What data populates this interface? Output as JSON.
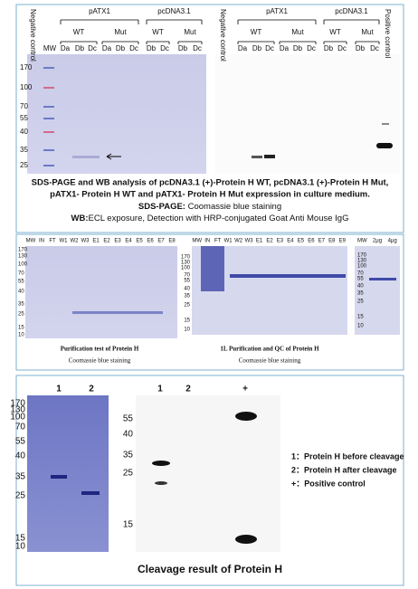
{
  "panel1": {
    "left": {
      "negative_control": "Negative control",
      "mw": "MW",
      "groups": [
        "pATX1",
        "pcDNA3.1"
      ],
      "subgroups": [
        "WT",
        "Mut",
        "WT",
        "Mut"
      ],
      "lanes": [
        "Da",
        "Db",
        "Dc",
        "Da",
        "Db",
        "Dc",
        "Db",
        "Dc",
        "Db",
        "Dc"
      ],
      "markers": [
        "170",
        "100",
        "70",
        "55",
        "40",
        "35",
        "25"
      ]
    },
    "right": {
      "negative_control": "Negative control",
      "groups": [
        "pATX1",
        "pcDNA3.1"
      ],
      "subgroups": [
        "WT",
        "Mut",
        "WT",
        "Mut"
      ],
      "lanes": [
        "Da",
        "Db",
        "Dc",
        "Da",
        "Db",
        "Dc",
        "Db",
        "Dc",
        "Db",
        "Dc"
      ],
      "positive_control": "Positive control"
    },
    "caption": [
      "SDS-PAGE and WB analysis of pcDNA3.1 (+)-Protein H WT, pcDNA3.1 (+)-Protein H Mut,",
      "pATX1- Protein H WT and pATX1- Protein H Mut expression in culture medium."
    ],
    "sds_label": "SDS-PAGE:",
    "sds_text": " Coomassie blue staining",
    "wb_label": "WB:",
    "wb_text": "ECL exposure, Detection with HRP-conjugated Goat Anti Mouse IgG"
  },
  "panel2": {
    "left": {
      "lanes": [
        "MW",
        "IN",
        "FT",
        "W1",
        "W2",
        "W3",
        "E1",
        "E2",
        "E3",
        "E4",
        "E5",
        "E6",
        "E7",
        "E8"
      ],
      "markers": [
        "170",
        "130",
        "100",
        "70",
        "55",
        "40",
        "35",
        "25",
        "15",
        "10"
      ],
      "caption": "Purification test of Protein H",
      "staining": "Coomassie blue staining"
    },
    "middle": {
      "lanes": [
        "MW",
        "IN",
        "FT",
        "W1",
        "W2",
        "W3",
        "E1",
        "E2",
        "E3",
        "E4",
        "E5",
        "E6",
        "E7",
        "E8",
        "E9"
      ],
      "markers": [
        "170",
        "130",
        "100",
        "70",
        "55",
        "40",
        "35",
        "25",
        "15",
        "10"
      ],
      "caption": "1L Purification and QC of Protein H",
      "staining": "Coomassie blue staining"
    },
    "right": {
      "lanes": [
        "MW",
        "2μg",
        "4μg"
      ],
      "markers": [
        "170",
        "130",
        "100",
        "70",
        "55",
        "40",
        "35",
        "25",
        "15",
        "10"
      ]
    }
  },
  "panel3": {
    "left": {
      "lanes": [
        "1",
        "2"
      ],
      "markers": [
        "170",
        "130",
        "100",
        "70",
        "55",
        "40",
        "35",
        "25",
        "15",
        "10"
      ]
    },
    "right": {
      "lanes": [
        "1",
        "2",
        "+"
      ],
      "markers": [
        "55",
        "40",
        "35",
        "25",
        "15"
      ]
    },
    "legend": [
      "1：Protein H before cleavage",
      "2：Protein H after cleavage",
      "+：Positive control"
    ],
    "title": "Cleavage result of Protein H"
  }
}
